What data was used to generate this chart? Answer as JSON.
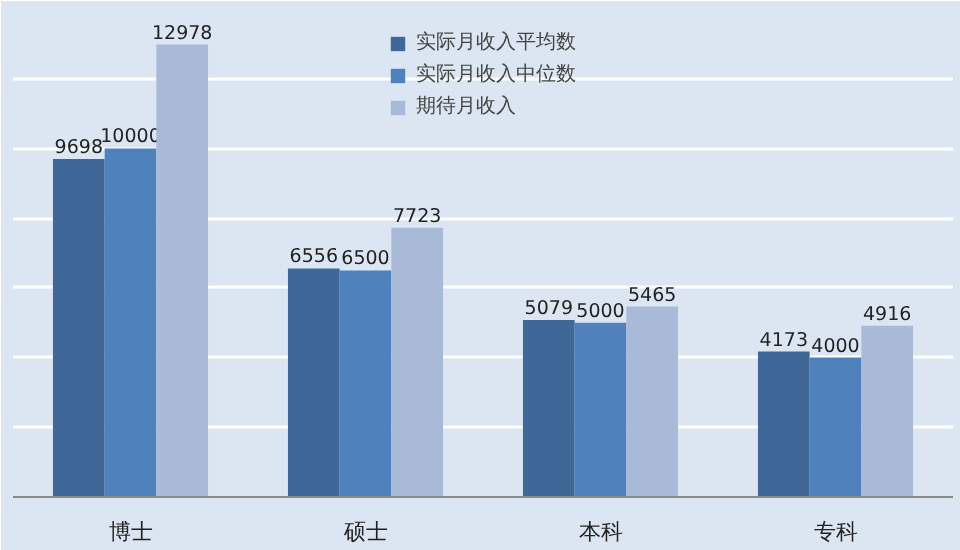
{
  "chart_data": {
    "type": "bar",
    "categories": [
      "博士",
      "硕士",
      "本科",
      "专科"
    ],
    "series": [
      {
        "name": "实际月收入平均数",
        "color": "#3f6899",
        "values": [
          9698,
          6556,
          5079,
          4173
        ]
      },
      {
        "name": "实际月收入中位数",
        "color": "#4f81bd",
        "values": [
          10000,
          6500,
          5000,
          4000
        ]
      },
      {
        "name": "期待月收入",
        "color": "#a9b9d8",
        "values": [
          12978,
          7723,
          5465,
          4916
        ]
      }
    ],
    "ylim": [
      0,
      14000
    ],
    "yticks": [
      {
        "value": 0,
        "label": null
      },
      {
        "value": 2000,
        "label": null
      },
      {
        "value": 4000,
        "label": null
      },
      {
        "value": 6000,
        "label": null
      },
      {
        "value": 8000,
        "label": null
      },
      {
        "value": 10000,
        "label": null
      },
      {
        "value": 12000,
        "label": null
      },
      {
        "value": 14000,
        "label": null
      }
    ],
    "grid": "y",
    "legend": "top",
    "tick_labels": "x",
    "data_labels": true
  }
}
